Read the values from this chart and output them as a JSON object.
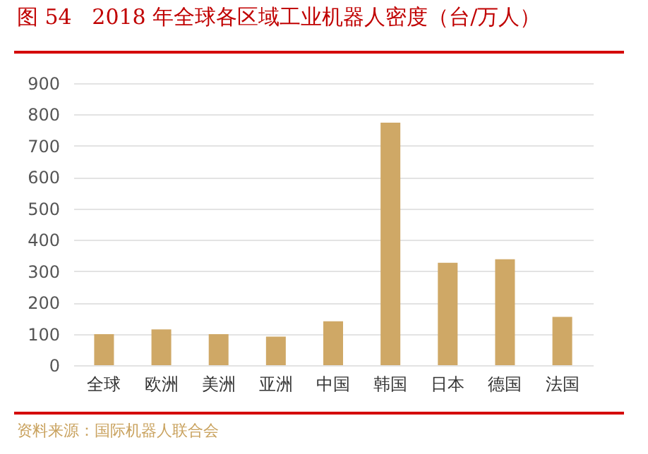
{
  "chart_data": {
    "type": "bar",
    "title": "图 54   2018 年全球各区域工业机器人密度（台/万人）",
    "categories": [
      "全球",
      "欧洲",
      "美洲",
      "亚洲",
      "中国",
      "韩国",
      "日本",
      "德国",
      "法国"
    ],
    "series": [
      {
        "color": "#cfa866",
        "values": [
          99,
          114,
          99,
          91,
          140,
          774,
          327,
          338,
          154
        ]
      }
    ],
    "ylim": [
      0,
      900
    ],
    "yticks": [
      0,
      100,
      200,
      300,
      400,
      500,
      600,
      700,
      800,
      900
    ],
    "grid": "y",
    "annotations": [
      "资料来源：国际机器人联合会"
    ]
  }
}
